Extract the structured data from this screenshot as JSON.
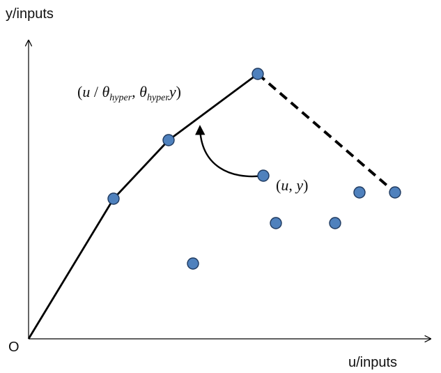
{
  "axes": {
    "y_label": "y/inputs",
    "x_label": "u/inputs",
    "origin_label": "O"
  },
  "annotations": {
    "transformed_point": {
      "open": "(",
      "u": "u",
      "slash": " / ",
      "theta1": "θ",
      "sub1": "hyper",
      "comma": ", ",
      "theta2": "θ",
      "sub2": "hyper",
      "y": "y",
      "close": ")"
    },
    "original_point": {
      "open": "(",
      "u": "u",
      "comma": ", ",
      "y": "y",
      "close": ")"
    }
  },
  "colors": {
    "point_fill": "#4f81bd",
    "point_stroke": "#1f3a60",
    "line": "#000000"
  }
}
